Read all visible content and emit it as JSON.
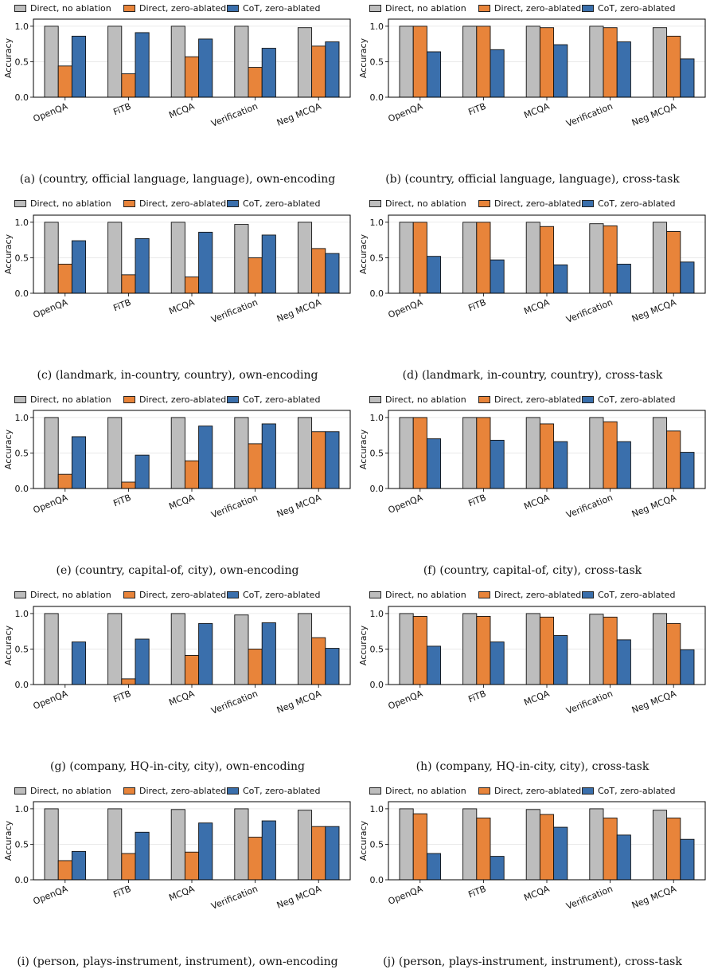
{
  "colors": {
    "no_ablation": "#bdbdbd",
    "direct_zero": "#e8843a",
    "cot_zero": "#3a6fac"
  },
  "chart_data": [
    {
      "type": "bar",
      "title": "(a) (country, official language, language), own-encoding",
      "ylabel": "Accuracy",
      "ylim": [
        0,
        1.1
      ],
      "yticks": [
        "0.0",
        "0.5",
        "1.0"
      ],
      "grid": true,
      "legend": "top",
      "categories": [
        "OpenQA",
        "FiTB",
        "MCQA",
        "Verification",
        "Neg MCQA"
      ],
      "series": [
        {
          "name": "Direct, no ablation",
          "values": [
            1.0,
            1.0,
            1.0,
            1.0,
            0.98
          ]
        },
        {
          "name": "Direct, zero-ablated",
          "values": [
            0.44,
            0.33,
            0.57,
            0.42,
            0.72
          ]
        },
        {
          "name": "CoT, zero-ablated",
          "values": [
            0.86,
            0.91,
            0.82,
            0.69,
            0.78
          ]
        }
      ]
    },
    {
      "type": "bar",
      "title": "(b) (country, official language, language), cross-task",
      "ylabel": "Accuracy",
      "ylim": [
        0,
        1.1
      ],
      "yticks": [
        "0.0",
        "0.5",
        "1.0"
      ],
      "grid": true,
      "legend": "top",
      "categories": [
        "OpenQA",
        "FiTB",
        "MCQA",
        "Verification",
        "Neg MCQA"
      ],
      "series": [
        {
          "name": "Direct, no ablation",
          "values": [
            1.0,
            1.0,
            1.0,
            1.0,
            0.98
          ]
        },
        {
          "name": "Direct, zero-ablated",
          "values": [
            1.0,
            1.0,
            0.98,
            0.98,
            0.86
          ]
        },
        {
          "name": "CoT, zero-ablated",
          "values": [
            0.64,
            0.67,
            0.74,
            0.78,
            0.54
          ]
        }
      ]
    },
    {
      "type": "bar",
      "title": "(c) (landmark, in-country, country), own-encoding",
      "ylabel": "Accuracy",
      "ylim": [
        0,
        1.1
      ],
      "yticks": [
        "0.0",
        "0.5",
        "1.0"
      ],
      "grid": true,
      "legend": "top",
      "categories": [
        "OpenQA",
        "FiTB",
        "MCQA",
        "Verification",
        "Neg MCQA"
      ],
      "series": [
        {
          "name": "Direct, no ablation",
          "values": [
            1.0,
            1.0,
            1.0,
            0.97,
            1.0
          ]
        },
        {
          "name": "Direct, zero-ablated",
          "values": [
            0.41,
            0.26,
            0.23,
            0.5,
            0.63
          ]
        },
        {
          "name": "CoT, zero-ablated",
          "values": [
            0.74,
            0.77,
            0.86,
            0.82,
            0.56
          ]
        }
      ]
    },
    {
      "type": "bar",
      "title": "(d) (landmark, in-country, country), cross-task",
      "ylabel": "Accuracy",
      "ylim": [
        0,
        1.1
      ],
      "yticks": [
        "0.0",
        "0.5",
        "1.0"
      ],
      "grid": true,
      "legend": "top",
      "categories": [
        "OpenQA",
        "FiTB",
        "MCQA",
        "Verification",
        "Neg MCQA"
      ],
      "series": [
        {
          "name": "Direct, no ablation",
          "values": [
            1.0,
            1.0,
            1.0,
            0.98,
            1.0
          ]
        },
        {
          "name": "Direct, zero-ablated",
          "values": [
            1.0,
            1.0,
            0.94,
            0.95,
            0.87
          ]
        },
        {
          "name": "CoT, zero-ablated",
          "values": [
            0.52,
            0.47,
            0.4,
            0.41,
            0.44
          ]
        }
      ]
    },
    {
      "type": "bar",
      "title": "(e) (country, capital-of, city), own-encoding",
      "ylabel": "Accuracy",
      "ylim": [
        0,
        1.1
      ],
      "yticks": [
        "0.0",
        "0.5",
        "1.0"
      ],
      "grid": true,
      "legend": "top",
      "categories": [
        "OpenQA",
        "FiTB",
        "MCQA",
        "Verification",
        "Neg MCQA"
      ],
      "series": [
        {
          "name": "Direct, no ablation",
          "values": [
            1.0,
            1.0,
            1.0,
            1.0,
            1.0
          ]
        },
        {
          "name": "Direct, zero-ablated",
          "values": [
            0.2,
            0.09,
            0.39,
            0.63,
            0.8
          ]
        },
        {
          "name": "CoT, zero-ablated",
          "values": [
            0.73,
            0.47,
            0.88,
            0.91,
            0.8
          ]
        }
      ]
    },
    {
      "type": "bar",
      "title": "(f) (country, capital-of, city), cross-task",
      "ylabel": "Accuracy",
      "ylim": [
        0,
        1.1
      ],
      "yticks": [
        "0.0",
        "0.5",
        "1.0"
      ],
      "grid": true,
      "legend": "top",
      "categories": [
        "OpenQA",
        "FiTB",
        "MCQA",
        "Verification",
        "Neg MCQA"
      ],
      "series": [
        {
          "name": "Direct, no ablation",
          "values": [
            1.0,
            1.0,
            1.0,
            1.0,
            1.0
          ]
        },
        {
          "name": "Direct, zero-ablated",
          "values": [
            1.0,
            1.0,
            0.91,
            0.94,
            0.81
          ]
        },
        {
          "name": "CoT, zero-ablated",
          "values": [
            0.7,
            0.68,
            0.66,
            0.66,
            0.51
          ]
        }
      ]
    },
    {
      "type": "bar",
      "title": "(g) (company, HQ-in-city, city), own-encoding",
      "ylabel": "Accuracy",
      "ylim": [
        0,
        1.1
      ],
      "yticks": [
        "0.0",
        "0.5",
        "1.0"
      ],
      "grid": true,
      "legend": "top",
      "categories": [
        "OpenQA",
        "FiTB",
        "MCQA",
        "Verification",
        "Neg MCQA"
      ],
      "series": [
        {
          "name": "Direct, no ablation",
          "values": [
            1.0,
            1.0,
            1.0,
            0.98,
            1.0
          ]
        },
        {
          "name": "Direct, zero-ablated",
          "values": [
            0.0,
            0.08,
            0.41,
            0.5,
            0.66
          ]
        },
        {
          "name": "CoT, zero-ablated",
          "values": [
            0.6,
            0.64,
            0.86,
            0.87,
            0.51
          ]
        }
      ]
    },
    {
      "type": "bar",
      "title": "(h) (company, HQ-in-city, city), cross-task",
      "ylabel": "Accuracy",
      "ylim": [
        0,
        1.1
      ],
      "yticks": [
        "0.0",
        "0.5",
        "1.0"
      ],
      "grid": true,
      "legend": "top",
      "categories": [
        "OpenQA",
        "FiTB",
        "MCQA",
        "Verification",
        "Neg MCQA"
      ],
      "series": [
        {
          "name": "Direct, no ablation",
          "values": [
            1.0,
            1.0,
            1.0,
            0.99,
            1.0
          ]
        },
        {
          "name": "Direct, zero-ablated",
          "values": [
            0.96,
            0.96,
            0.95,
            0.95,
            0.86
          ]
        },
        {
          "name": "CoT, zero-ablated",
          "values": [
            0.54,
            0.6,
            0.69,
            0.63,
            0.49
          ]
        }
      ]
    },
    {
      "type": "bar",
      "title": "(i) (person, plays-instrument, instrument), own-encoding",
      "ylabel": "Accuracy",
      "ylim": [
        0,
        1.1
      ],
      "yticks": [
        "0.0",
        "0.5",
        "1.0"
      ],
      "grid": true,
      "legend": "top",
      "categories": [
        "OpenQA",
        "FiTB",
        "MCQA",
        "Verification",
        "Neg MCQA"
      ],
      "series": [
        {
          "name": "Direct, no ablation",
          "values": [
            1.0,
            1.0,
            0.99,
            1.0,
            0.98
          ]
        },
        {
          "name": "Direct, zero-ablated",
          "values": [
            0.27,
            0.37,
            0.39,
            0.6,
            0.75
          ]
        },
        {
          "name": "CoT, zero-ablated",
          "values": [
            0.4,
            0.67,
            0.8,
            0.83,
            0.75
          ]
        }
      ]
    },
    {
      "type": "bar",
      "title": "(j) (person, plays-instrument, instrument), cross-task",
      "ylabel": "Accuracy",
      "ylim": [
        0,
        1.1
      ],
      "yticks": [
        "0.0",
        "0.5",
        "1.0"
      ],
      "grid": true,
      "legend": "top",
      "categories": [
        "OpenQA",
        "FiTB",
        "MCQA",
        "Verification",
        "Neg MCQA"
      ],
      "series": [
        {
          "name": "Direct, no ablation",
          "values": [
            1.0,
            1.0,
            0.99,
            1.0,
            0.98
          ]
        },
        {
          "name": "Direct, zero-ablated",
          "values": [
            0.93,
            0.87,
            0.92,
            0.87,
            0.87
          ]
        },
        {
          "name": "CoT, zero-ablated",
          "values": [
            0.37,
            0.33,
            0.74,
            0.63,
            0.57
          ]
        }
      ]
    }
  ]
}
